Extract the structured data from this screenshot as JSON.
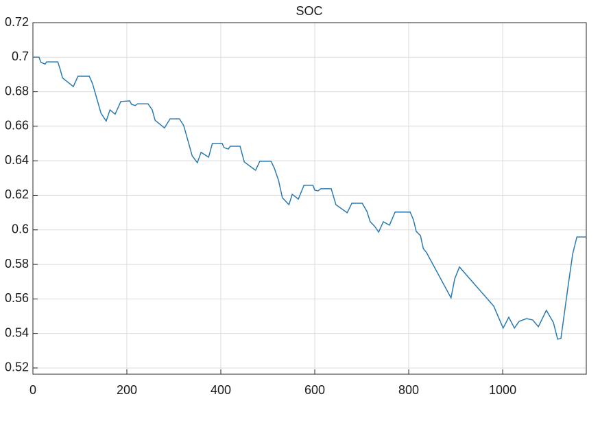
{
  "chart_data": {
    "type": "line",
    "title": "SOC",
    "x": [
      0,
      13,
      17,
      26,
      29,
      53,
      58,
      63,
      86,
      96,
      120,
      127,
      134,
      145,
      156,
      164,
      175,
      187,
      206,
      210,
      218,
      223,
      245,
      254,
      260,
      280,
      292,
      312,
      321,
      328,
      339,
      350,
      358,
      374,
      382,
      403,
      407,
      416,
      420,
      441,
      450,
      474,
      483,
      507,
      514,
      523,
      531,
      545,
      552,
      565,
      577,
      596,
      600,
      607,
      613,
      635,
      645,
      669,
      679,
      701,
      711,
      718,
      728,
      736,
      746,
      759,
      771,
      803,
      810,
      816,
      825,
      831,
      838,
      890,
      898,
      908,
      981,
      1001,
      1013,
      1025,
      1035,
      1051,
      1064,
      1076,
      1093,
      1108,
      1117,
      1124,
      1139,
      1149,
      1158,
      1178
    ],
    "series": [
      {
        "name": "SOC",
        "color": "#2a7ab0",
        "values": [
          0.7,
          0.7,
          0.697,
          0.696,
          0.6973,
          0.6973,
          0.693,
          0.688,
          0.683,
          0.689,
          0.689,
          0.6846,
          0.678,
          0.6675,
          0.663,
          0.6695,
          0.667,
          0.6743,
          0.6747,
          0.6727,
          0.672,
          0.673,
          0.673,
          0.6695,
          0.6635,
          0.659,
          0.6643,
          0.6643,
          0.6604,
          0.6536,
          0.6429,
          0.6389,
          0.6449,
          0.6421,
          0.65,
          0.65,
          0.6476,
          0.6468,
          0.6484,
          0.6484,
          0.6393,
          0.6345,
          0.6397,
          0.6397,
          0.6357,
          0.6285,
          0.6186,
          0.6146,
          0.6206,
          0.6178,
          0.6258,
          0.6258,
          0.623,
          0.6226,
          0.6238,
          0.6238,
          0.6146,
          0.6099,
          0.6154,
          0.6154,
          0.6107,
          0.6047,
          0.6019,
          0.5987,
          0.6047,
          0.6027,
          0.6103,
          0.6103,
          0.6059,
          0.5991,
          0.5967,
          0.5892,
          0.5868,
          0.5606,
          0.5717,
          0.5785,
          0.5558,
          0.5431,
          0.5494,
          0.5431,
          0.547,
          0.5486,
          0.5478,
          0.5439,
          0.5534,
          0.5463,
          0.5367,
          0.5371,
          0.5669,
          0.586,
          0.5959,
          0.5959
        ]
      }
    ],
    "xlim": [
      0,
      1178
    ],
    "xticks": [
      0,
      200,
      400,
      600,
      800,
      1000
    ],
    "ylim": [
      0.5164,
      0.72
    ],
    "yticks": [
      0.52,
      0.54,
      0.56,
      0.58,
      0.6,
      0.62,
      0.64,
      0.66,
      0.68,
      0.7,
      0.72
    ],
    "grid": true
  }
}
